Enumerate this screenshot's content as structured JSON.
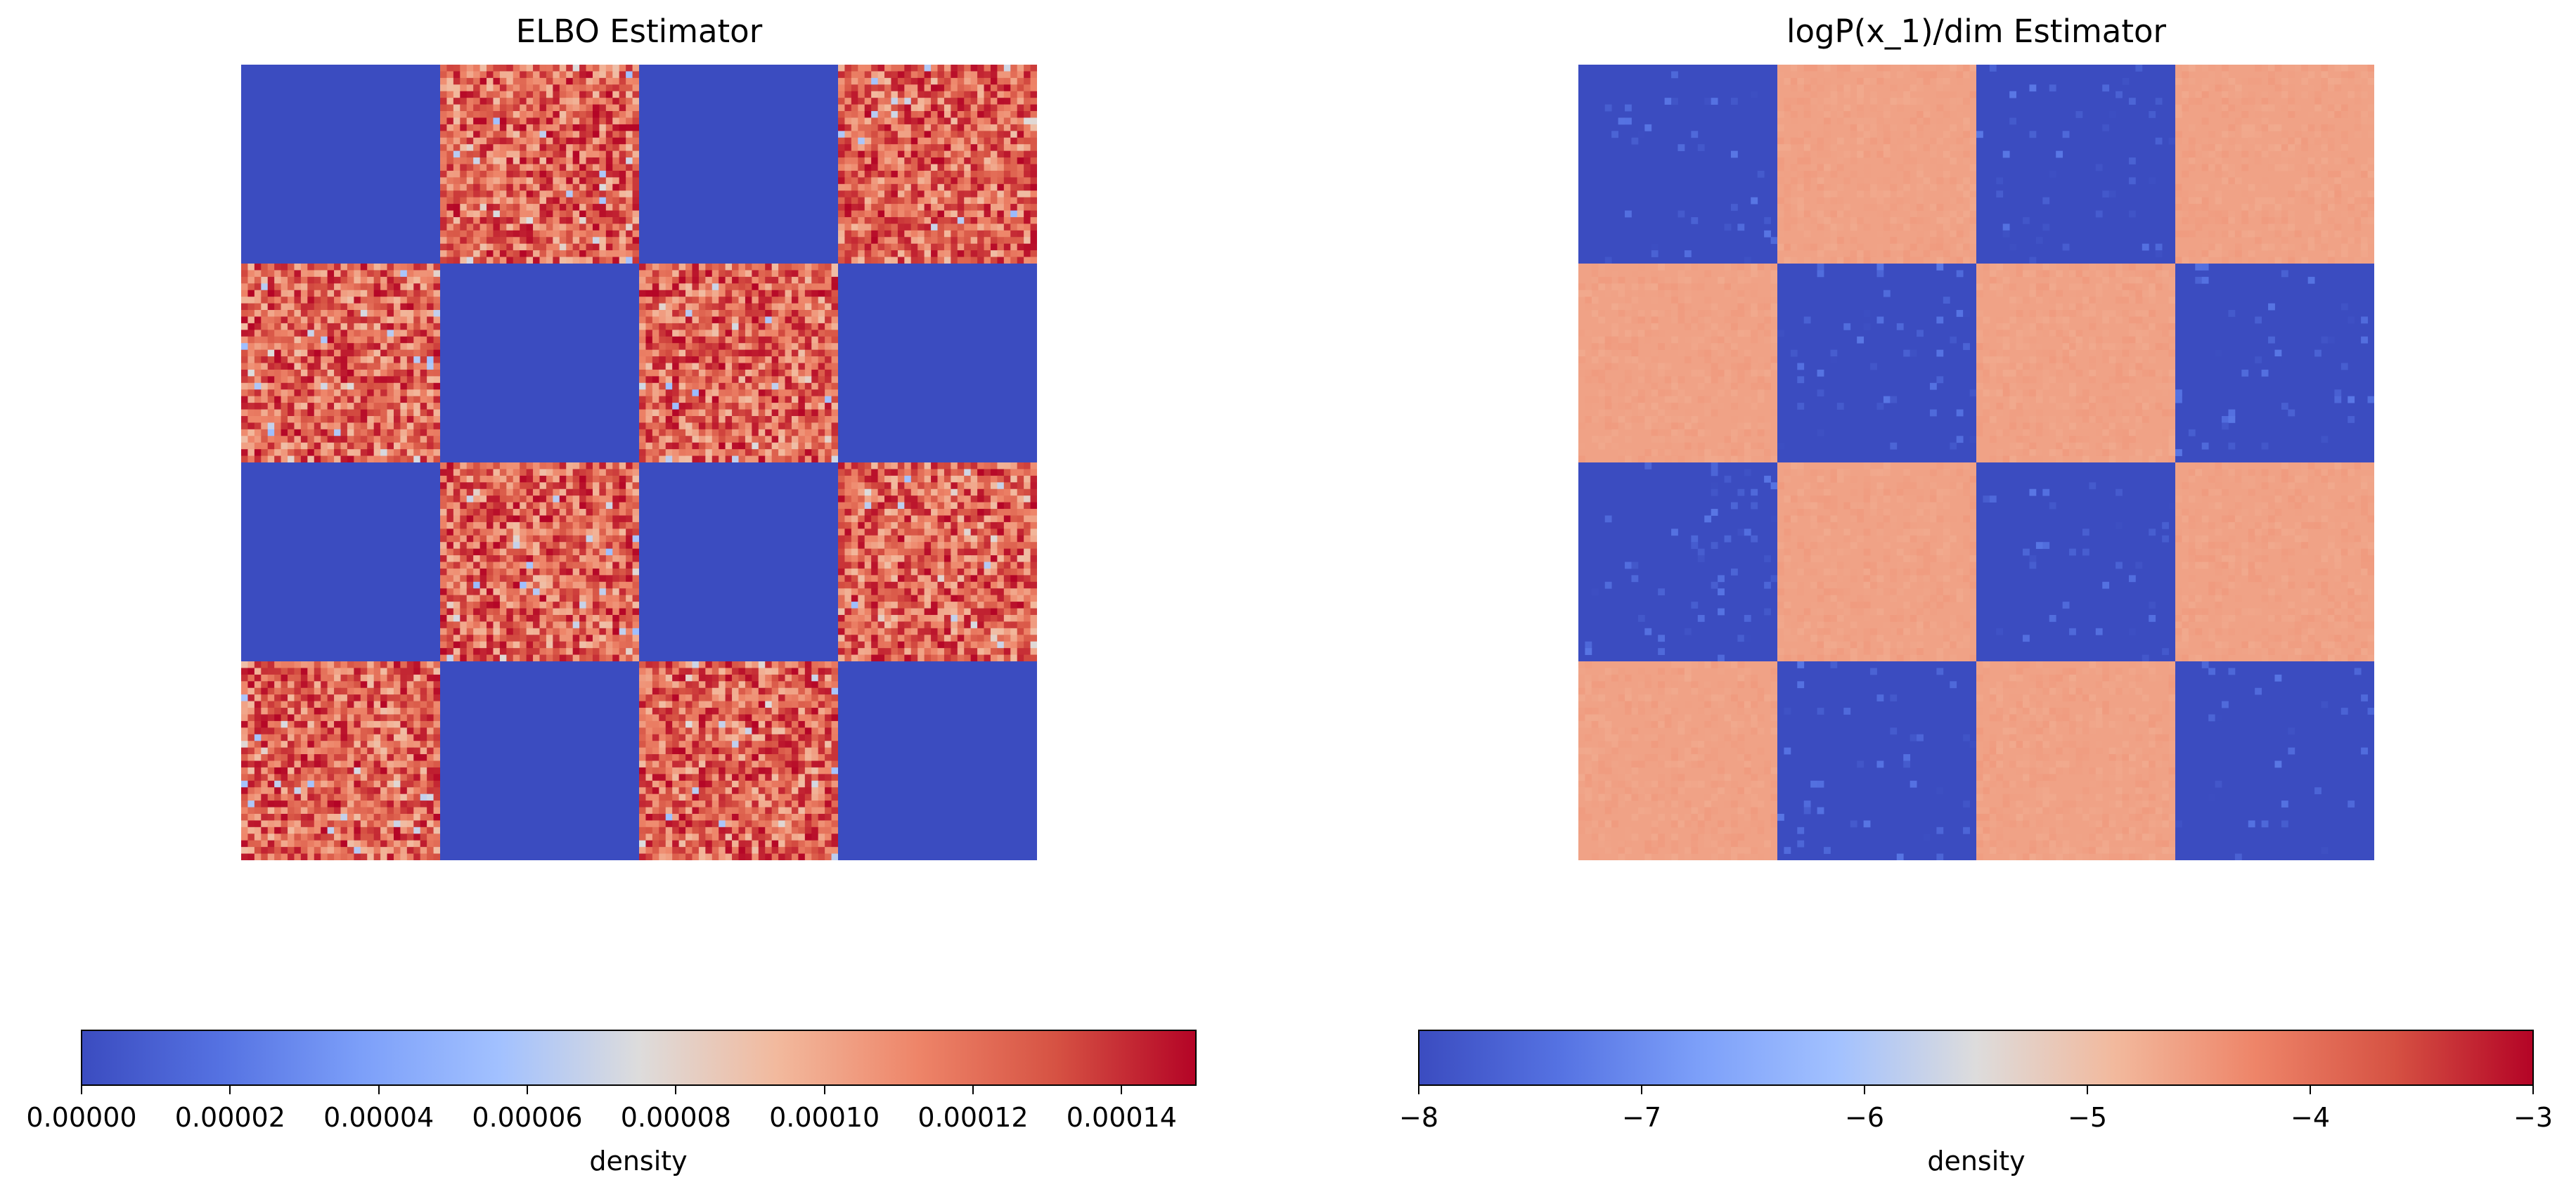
{
  "chart_data": [
    {
      "type": "heatmap",
      "title": "ELBO Estimator",
      "grid_blocks": [
        [
          "low",
          "high",
          "low",
          "high"
        ],
        [
          "high",
          "low",
          "high",
          "low"
        ],
        [
          "low",
          "high",
          "low",
          "high"
        ],
        [
          "high",
          "low",
          "high",
          "low"
        ]
      ],
      "low_block_value": 0.0,
      "high_block_value_range": [
        9e-05,
        0.00015
      ],
      "colormap": "coolwarm",
      "colorbar": {
        "label": "density",
        "range": [
          0.0,
          0.00015
        ],
        "ticks": [
          "0.00000",
          "0.00002",
          "0.00004",
          "0.00006",
          "0.00008",
          "0.00010",
          "0.00012",
          "0.00014"
        ],
        "tick_values": [
          0.0,
          2e-05,
          4e-05,
          6e-05,
          8e-05,
          0.0001,
          0.00012,
          0.00014
        ],
        "orientation": "horizontal",
        "placement": "bottom"
      },
      "axes": "off"
    },
    {
      "type": "heatmap",
      "title": "logP(x_1)/dim Estimator",
      "grid_blocks": [
        [
          "low",
          "high",
          "low",
          "high"
        ],
        [
          "high",
          "low",
          "high",
          "low"
        ],
        [
          "low",
          "high",
          "low",
          "high"
        ],
        [
          "high",
          "low",
          "high",
          "low"
        ]
      ],
      "low_block_value": -8,
      "high_block_value": -4.6,
      "colormap": "coolwarm",
      "colorbar": {
        "label": "density",
        "range": [
          -8,
          -3
        ],
        "ticks": [
          "−8",
          "−7",
          "−6",
          "−5",
          "−4",
          "−3"
        ],
        "tick_values": [
          -8,
          -7,
          -6,
          -5,
          -4,
          -3
        ],
        "orientation": "horizontal",
        "placement": "bottom"
      },
      "axes": "off"
    }
  ],
  "colors": {
    "coolwarm_low": "#3b4cc0",
    "coolwarm_mid": "#dddcdc",
    "coolwarm_high": "#b40426"
  }
}
